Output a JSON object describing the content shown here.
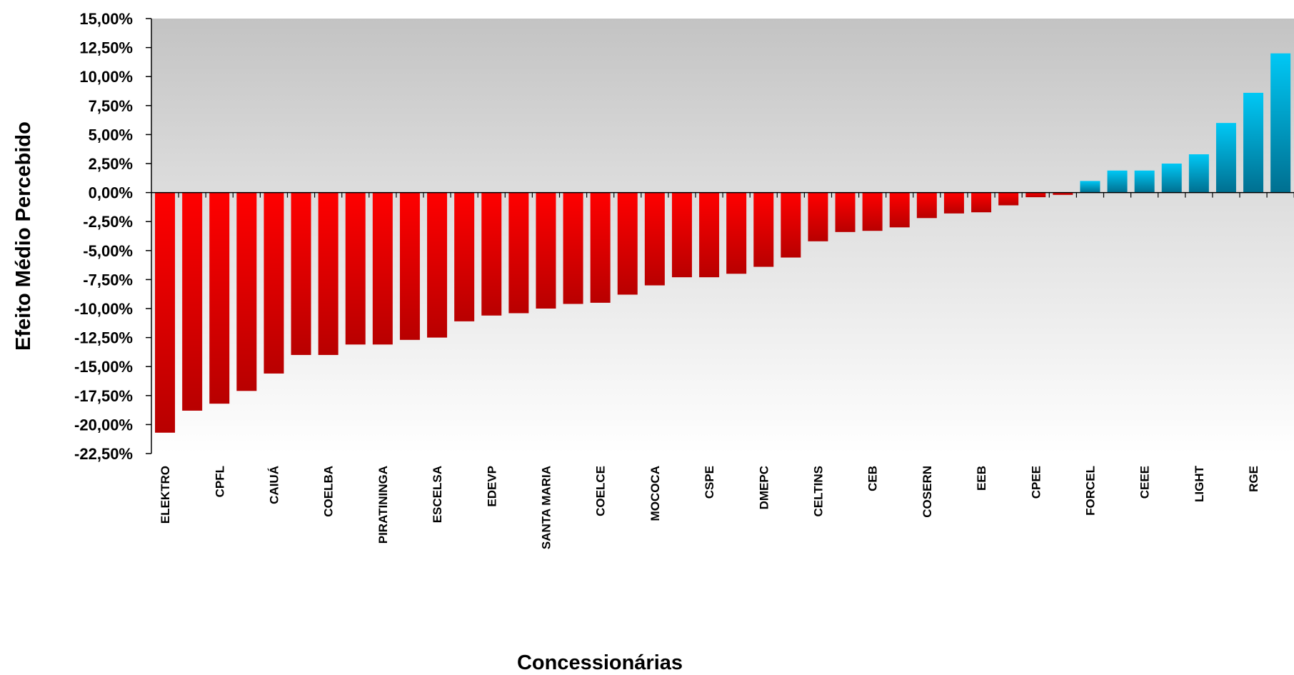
{
  "chart_data": {
    "type": "bar",
    "title": "",
    "xlabel": "Concessionárias",
    "ylabel": "Efeito Médio Percebido",
    "ylim": [
      -22.5,
      15
    ],
    "y_ticks": [
      15,
      12.5,
      10,
      7.5,
      5,
      2.5,
      0,
      -2.5,
      -5,
      -7.5,
      -10,
      -12.5,
      -15,
      -17.5,
      -20,
      -22.5
    ],
    "y_tick_labels": [
      "15,00%",
      "12,50%",
      "10,00%",
      "7,50%",
      "5,00%",
      "2,50%",
      "0,00%",
      "-2,50%",
      "-5,00%",
      "-7,50%",
      "-10,00%",
      "-12,50%",
      "-15,00%",
      "-17,50%",
      "-20,00%",
      "-22,50%"
    ],
    "categories": [
      "ELEKTRO",
      "",
      "CPFL",
      "",
      "CAIUÁ",
      "",
      "COELBA",
      "",
      "PIRATININGA",
      "",
      "ESCELSA",
      "",
      "EDEVP",
      "",
      "SANTA MARIA",
      "",
      "COELCE",
      "",
      "MOCOCA",
      "",
      "CSPE",
      "",
      "DMEPC",
      "",
      "CELTINS",
      "",
      "CEB",
      "",
      "COSERN",
      "",
      "EEB",
      "",
      "CPEE",
      "",
      "FORCEL",
      "",
      "CEEE",
      "",
      "LIGHT",
      "",
      "RGE",
      ""
    ],
    "values": [
      -20.7,
      -18.8,
      -18.2,
      -17.1,
      -15.6,
      -14.0,
      -14.0,
      -13.1,
      -13.1,
      -12.7,
      -12.5,
      -11.1,
      -10.6,
      -10.4,
      -10.0,
      -9.6,
      -9.5,
      -8.8,
      -8.0,
      -7.3,
      -7.3,
      -7.0,
      -6.4,
      -5.6,
      -4.2,
      -3.4,
      -3.3,
      -3.0,
      -2.2,
      -1.8,
      -1.7,
      -1.1,
      -0.4,
      -0.2,
      1.0,
      1.9,
      1.9,
      2.5,
      3.3,
      6.0,
      8.6,
      12.0
    ],
    "colors": {
      "negative": "#ee0000",
      "positive": "#00b0e0"
    },
    "grid": false,
    "legend": "none"
  }
}
